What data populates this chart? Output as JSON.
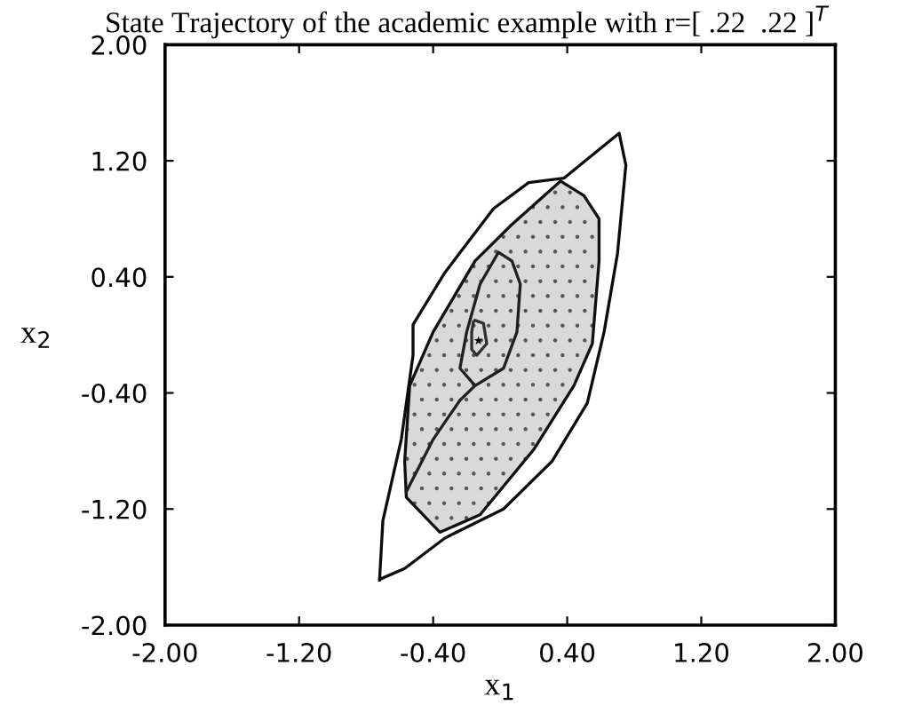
{
  "chart_data": {
    "type": "line",
    "title": "State Trajectory of the academic example with r=[ .22  .22 ]$^{T}$",
    "xlabel": "x$_{1}$",
    "ylabel": "x$_{2}$",
    "xlim": [
      -2,
      2
    ],
    "ylim": [
      -2,
      2
    ],
    "xticks": [
      {
        "value": -2,
        "label": "-2.00"
      },
      {
        "value": -1.2,
        "label": "-1.20"
      },
      {
        "value": -0.4,
        "label": "-0.40"
      },
      {
        "value": 0.4,
        "label": "0.40"
      },
      {
        "value": 1.2,
        "label": "1.20"
      },
      {
        "value": 2,
        "label": "2.00"
      }
    ],
    "yticks": [
      {
        "value": -2,
        "label": "-2.00"
      },
      {
        "value": -1.2,
        "label": "-1.20"
      },
      {
        "value": -0.4,
        "label": "-0.40"
      },
      {
        "value": 0.4,
        "label": "0.40"
      },
      {
        "value": 1.2,
        "label": "1.20"
      },
      {
        "value": 2,
        "label": "2.00"
      }
    ],
    "grid": false,
    "legend": false,
    "series": [
      {
        "type": "area",
        "color": "#d9d9d9",
        "x": [
          0.36,
          0.5,
          0.59,
          0.59,
          0.55,
          0.44,
          0.2,
          -0.12,
          -0.36,
          -0.56,
          -0.57,
          -0.54,
          -0.4,
          -0.15,
          0.06,
          0.36
        ],
        "values": [
          1.06,
          0.96,
          0.8,
          0.51,
          -0.06,
          -0.35,
          -0.79,
          -1.24,
          -1.36,
          -1.12,
          -0.87,
          -0.35,
          0.02,
          0.51,
          0.75,
          1.06
        ]
      },
      {
        "color": "#0c0c0c",
        "x": [
          -0.72,
          -0.7,
          -0.59,
          -0.52,
          -0.52,
          -0.33,
          -0.04,
          0.17,
          0.38,
          0.71,
          0.75,
          0.7,
          0.62,
          0.52,
          0.31,
          0.02,
          -0.33,
          -0.57,
          -0.71
        ],
        "values": [
          -1.69,
          -1.28,
          -0.72,
          -0.14,
          0.07,
          0.43,
          0.87,
          1.05,
          1.08,
          1.39,
          1.17,
          0.56,
          0.02,
          -0.47,
          -0.87,
          -1.2,
          -1.4,
          -1.61,
          -1.68
        ]
      },
      {
        "color": "#202020",
        "x": [
          -0.56,
          -0.4,
          -0.24,
          -0.15,
          0.02,
          0.1,
          0.12,
          0.07,
          -0.01,
          -0.12,
          -0.2,
          -0.24,
          -0.15
        ],
        "values": [
          -1.08,
          -0.72,
          -0.45,
          -0.35,
          -0.23,
          0.02,
          0.35,
          0.51,
          0.57,
          0.35,
          0.02,
          -0.23,
          -0.35
        ]
      },
      {
        "color": "#303030",
        "x": [
          -0.15,
          -0.1,
          -0.08,
          -0.14,
          -0.17,
          -0.17,
          -0.16
        ],
        "values": [
          0.1,
          0.08,
          -0.06,
          -0.14,
          -0.1,
          0.02,
          0.09
        ]
      },
      {
        "type": "scatter",
        "color": "#000000",
        "marker": "star",
        "x": [
          -0.13
        ],
        "values": [
          -0.04
        ]
      }
    ]
  }
}
